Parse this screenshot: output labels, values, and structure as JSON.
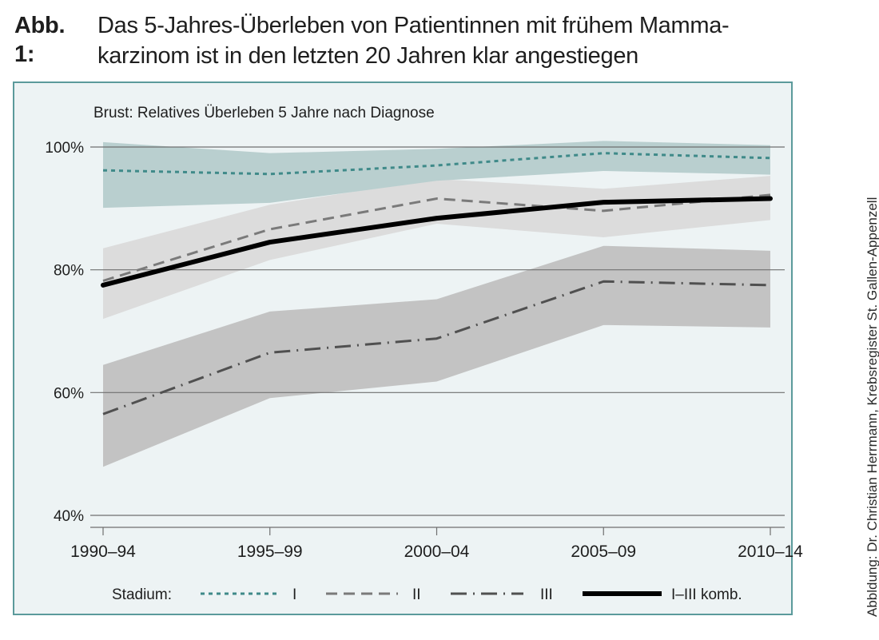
{
  "figure": {
    "label": "Abb. 1:",
    "caption_line1": "Das 5-Jahres-Überleben von Patientinnen mit frühem Mamma-",
    "caption_line2": "karzinom ist in den letzten 20 Jahren klar angestiegen",
    "credit": "Abbldung: Dr. Christian Herrmann, Krebsregister St. Gallen-Appenzell"
  },
  "colors": {
    "frame_border": "#5b9a9b",
    "panel_bg": "#edf3f4",
    "stage1_line": "#3f8a89",
    "stage1_band": "#b9cfcf",
    "stage2_line": "#7a7a7a",
    "stage2_band": "#dcdcdc",
    "stage3_line": "#505050",
    "stage3_band": "#c3c3c3",
    "combined_line": "#000000",
    "grid": "#6f6f6f"
  },
  "chart_data": {
    "type": "line",
    "title": "Brust: Relatives Überleben 5 Jahre nach Diagnose",
    "xlabel": "",
    "ylabel": "",
    "categories": [
      "1990–94",
      "1995–99",
      "2000–04",
      "2005–09",
      "2010–14"
    ],
    "ylim": [
      40,
      100
    ],
    "yticks": [
      40,
      60,
      80,
      100
    ],
    "ytick_labels": [
      "40%",
      "60%",
      "80%",
      "100%"
    ],
    "grid": true,
    "legend_title": "Stadium:",
    "legend_position": "bottom",
    "series": [
      {
        "key": "stage1",
        "name": "I",
        "style": "dotted",
        "values": [
          96.2,
          95.6,
          97.0,
          99.0,
          98.2
        ],
        "ci_upper": [
          100.8,
          99.0,
          99.7,
          101.0,
          100.3
        ],
        "ci_lower": [
          90.1,
          90.9,
          94.5,
          96.1,
          95.5
        ]
      },
      {
        "key": "stage2",
        "name": "II",
        "style": "dashed",
        "values": [
          78.2,
          86.6,
          91.6,
          89.6,
          92.2
        ],
        "ci_upper": [
          83.5,
          90.6,
          94.8,
          93.2,
          95.3
        ],
        "ci_lower": [
          72.0,
          81.6,
          87.5,
          85.3,
          88.1
        ]
      },
      {
        "key": "stage3",
        "name": "III",
        "style": "dash-dot",
        "values": [
          56.5,
          66.5,
          68.8,
          78.1,
          77.5
        ],
        "ci_upper": [
          64.5,
          73.2,
          75.2,
          83.9,
          83.1
        ],
        "ci_lower": [
          47.9,
          59.1,
          61.8,
          71.0,
          70.6
        ]
      },
      {
        "key": "combined",
        "name": "I–III komb.",
        "style": "solid-bold",
        "values": [
          77.5,
          84.5,
          88.4,
          91.0,
          91.6
        ]
      }
    ]
  }
}
